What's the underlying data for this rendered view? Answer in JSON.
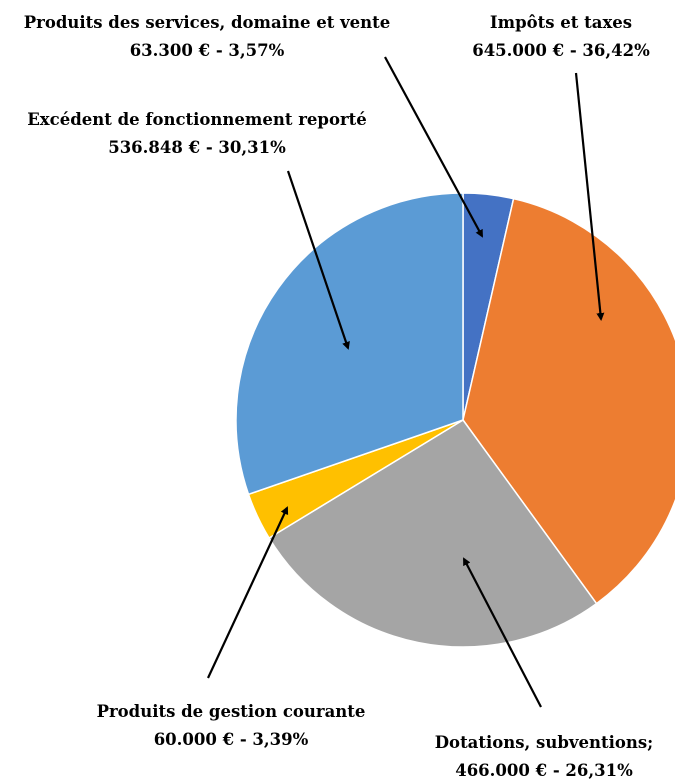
{
  "chart_data": {
    "type": "pie",
    "start_angle_deg": 0,
    "direction": "clockwise",
    "slices": [
      {
        "label": "Produits des services, domaine et vente",
        "value": 63300,
        "value_text": "63.300 € - 3,57%",
        "percent": 3.57,
        "color": "#4472C4"
      },
      {
        "label": "Impôts et taxes",
        "value": 645000,
        "value_text": "645.000 € - 36,42%",
        "percent": 36.42,
        "color": "#ED7D31"
      },
      {
        "label": "Dotations, subventions;",
        "value": 466000,
        "value_text": "466.000 € - 26,31%",
        "percent": 26.31,
        "color": "#A5A5A5"
      },
      {
        "label": "Produits de gestion courante",
        "value": 60000,
        "value_text": "60.000 € - 3,39%",
        "percent": 3.39,
        "color": "#FFC000"
      },
      {
        "label": "Excédent de fonctionnement reporté",
        "value": 536848,
        "value_text": "536.848 € - 30,31%",
        "percent": 30.31,
        "color": "#5B9BD5"
      }
    ]
  }
}
